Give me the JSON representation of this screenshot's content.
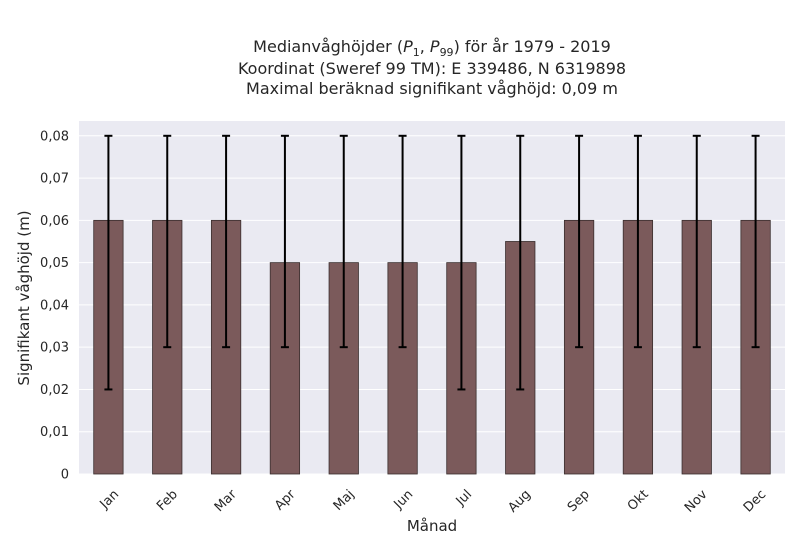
{
  "chart_data": {
    "type": "bar",
    "title_lines": [
      "Medianvåghöjder (P1, P99) för år 1979 - 2019",
      "Koordinat (Sweref 99 TM): E 339486, N 6319898",
      "Maximal beräknad signifikant våghöjd: 0,09 m"
    ],
    "title_parts": {
      "prefix": "Medianvåghöjder (",
      "p1": "P",
      "p1_sub": "1",
      "sep": ", ",
      "p99": "P",
      "p99_sub": "99",
      "suffix": ") för år 1979 - 2019"
    },
    "xlabel": "Månad",
    "ylabel": "Signifikant våghöjd (m)",
    "categories": [
      "Jan",
      "Feb",
      "Mar",
      "Apr",
      "Maj",
      "Jun",
      "Jul",
      "Aug",
      "Sep",
      "Okt",
      "Nov",
      "Dec"
    ],
    "values": [
      0.06,
      0.06,
      0.06,
      0.05,
      0.05,
      0.05,
      0.05,
      0.055,
      0.06,
      0.06,
      0.06,
      0.06
    ],
    "error_low": [
      0.02,
      0.03,
      0.03,
      0.03,
      0.03,
      0.03,
      0.02,
      0.02,
      0.03,
      0.03,
      0.03,
      0.03
    ],
    "error_high": [
      0.08,
      0.08,
      0.08,
      0.08,
      0.08,
      0.08,
      0.08,
      0.08,
      0.08,
      0.08,
      0.08,
      0.08
    ],
    "ylim": [
      0,
      0.0835
    ],
    "yticks": [
      0,
      0.01,
      0.02,
      0.03,
      0.04,
      0.05,
      0.06,
      0.07,
      0.08
    ],
    "ytick_labels": [
      "0",
      "0,01",
      "0,02",
      "0,03",
      "0,04",
      "0,05",
      "0,06",
      "0,07",
      "0,08"
    ],
    "grid": true,
    "colors": {
      "bar": "#7b5a5b",
      "bar_edge": "#3a2e2e",
      "error": "#000000",
      "plot_bg": "#eaeaf2",
      "grid": "#ffffff",
      "text": "#262626"
    }
  }
}
